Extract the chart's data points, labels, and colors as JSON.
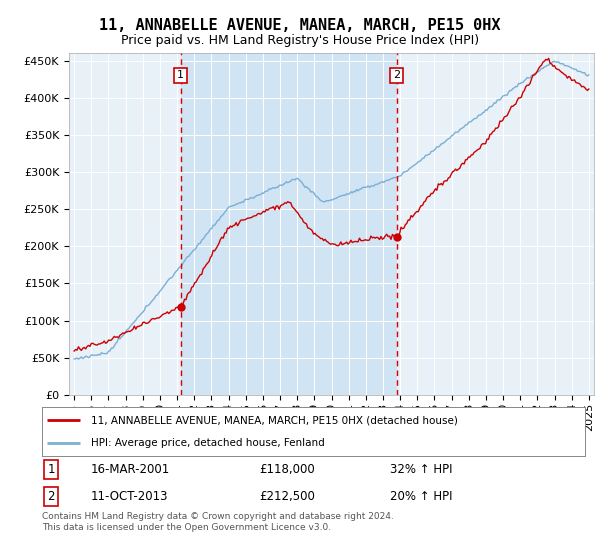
{
  "title": "11, ANNABELLE AVENUE, MANEA, MARCH, PE15 0HX",
  "subtitle": "Price paid vs. HM Land Registry's House Price Index (HPI)",
  "hpi_label": "HPI: Average price, detached house, Fenland",
  "price_label": "11, ANNABELLE AVENUE, MANEA, MARCH, PE15 0HX (detached house)",
  "price_color": "#cc0000",
  "hpi_color": "#7bafd4",
  "bg_color": "#e8f0f8",
  "bg_highlight_color": "#d0e4f4",
  "vline_color": "#dd0000",
  "annotation1": {
    "label": "1",
    "date": "16-MAR-2001",
    "price": "£118,000",
    "change": "32% ↑ HPI"
  },
  "annotation2": {
    "label": "2",
    "date": "11-OCT-2013",
    "price": "£212,500",
    "change": "20% ↑ HPI"
  },
  "vline1_x": 2001.21,
  "vline2_x": 2013.79,
  "sale1_y": 118000,
  "sale2_y": 212500,
  "ylim": [
    0,
    460000
  ],
  "yticks": [
    0,
    50000,
    100000,
    150000,
    200000,
    250000,
    300000,
    350000,
    400000,
    450000
  ],
  "xmin": 1995,
  "xmax": 2025,
  "footer": "Contains HM Land Registry data © Crown copyright and database right 2024.\nThis data is licensed under the Open Government Licence v3.0.",
  "title_fontsize": 11,
  "subtitle_fontsize": 9,
  "tick_fontsize": 8,
  "label_fontsize": 8
}
